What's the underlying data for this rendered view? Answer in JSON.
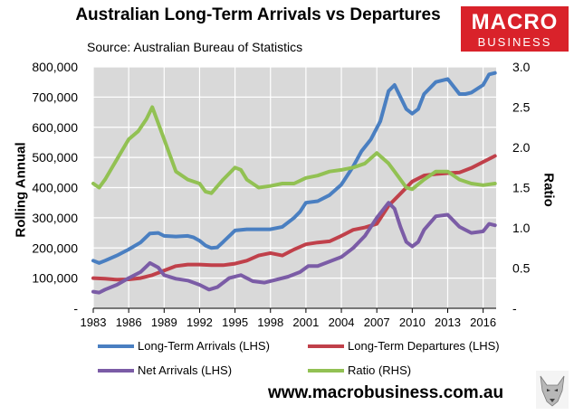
{
  "title": "Australian Long-Term Arrivals vs Departures",
  "subtitle": "Source: Australian Bureau of Statistics",
  "logo": {
    "line1": "MACRO",
    "line2": "BUSINESS",
    "color": "#d9222a"
  },
  "footer": "www.macrobusiness.com.au",
  "chart_data": {
    "type": "line",
    "title": "Australian Long-Term Arrivals vs Departures",
    "ylabel_left": "Rolling Annual",
    "ylabel_right": "Ratio",
    "xlim": [
      1983,
      2017.1
    ],
    "ylim_left": [
      0,
      800000
    ],
    "ylim_right": [
      0,
      3.0
    ],
    "x_ticks": [
      "1983",
      "1986",
      "1989",
      "1992",
      "1995",
      "1998",
      "2001",
      "2004",
      "2007",
      "2010",
      "2013",
      "2016"
    ],
    "y_ticks_left": [
      "-",
      "100,000",
      "200,000",
      "300,000",
      "400,000",
      "500,000",
      "600,000",
      "700,000",
      "800,000"
    ],
    "y_ticks_right": [
      "-",
      "0.5",
      "1.0",
      "1.5",
      "2.0",
      "2.5",
      "3.0"
    ],
    "grid": true,
    "legend_position": "bottom",
    "series": [
      {
        "name": "Long-Term Arrivals (LHS)",
        "axis": "left",
        "color": "#4a7fc1",
        "x": [
          1983.0,
          1983.5,
          1984,
          1985,
          1986,
          1987,
          1987.8,
          1988.5,
          1989,
          1990,
          1991,
          1991.5,
          1992,
          1992.5,
          1993,
          1993.5,
          1994,
          1995,
          1996,
          1997,
          1998,
          1999,
          2000,
          2000.5,
          2001,
          2002,
          2003,
          2004,
          2005,
          2005.7,
          2006.5,
          2007.3,
          2008,
          2008.5,
          2009,
          2009.5,
          2010,
          2010.5,
          2011,
          2011.5,
          2012,
          2013,
          2014,
          2014.5,
          2015,
          2016,
          2016.5,
          2017
        ],
        "y": [
          158000,
          150000,
          158000,
          175000,
          195000,
          218000,
          248000,
          250000,
          240000,
          238000,
          240000,
          235000,
          224000,
          208000,
          200000,
          202000,
          220000,
          258000,
          262000,
          262000,
          262000,
          270000,
          300000,
          320000,
          350000,
          355000,
          375000,
          410000,
          470000,
          520000,
          560000,
          620000,
          720000,
          740000,
          700000,
          660000,
          645000,
          660000,
          710000,
          730000,
          750000,
          760000,
          710000,
          710000,
          715000,
          740000,
          775000,
          780000
        ]
      },
      {
        "name": "Long-Term Departures (LHS)",
        "axis": "left",
        "color": "#c0404a",
        "x": [
          1983,
          1984,
          1985,
          1986,
          1987,
          1988,
          1989,
          1990,
          1991,
          1992,
          1993,
          1994,
          1995,
          1996,
          1997,
          1998,
          1999,
          2000,
          2001,
          2002,
          2003,
          2004,
          2005,
          2006,
          2007,
          2008,
          2009,
          2010,
          2011,
          2012,
          2013,
          2014,
          2015,
          2016,
          2017
        ],
        "y": [
          100000,
          98000,
          95000,
          96000,
          100000,
          110000,
          125000,
          140000,
          145000,
          145000,
          143000,
          143000,
          148000,
          158000,
          175000,
          183000,
          175000,
          195000,
          212000,
          218000,
          222000,
          240000,
          260000,
          268000,
          280000,
          340000,
          380000,
          420000,
          440000,
          445000,
          448000,
          450000,
          465000,
          485000,
          505000
        ]
      },
      {
        "name": "Net Arrivals (LHS)",
        "axis": "left",
        "color": "#7b5ca6",
        "x": [
          1983,
          1983.5,
          1984,
          1985,
          1986,
          1987,
          1987.8,
          1988.5,
          1989,
          1990,
          1991,
          1992,
          1992.8,
          1993.5,
          1994.5,
          1995.5,
          1996.5,
          1997.5,
          1998.5,
          1999.5,
          2000.5,
          2001.2,
          2002,
          2003,
          2004,
          2005,
          2006,
          2007,
          2008,
          2008.5,
          2009,
          2009.5,
          2010,
          2010.5,
          2011,
          2012,
          2013,
          2013.5,
          2014,
          2015,
          2016,
          2016.5,
          2017
        ],
        "y": [
          55000,
          52000,
          62000,
          78000,
          100000,
          120000,
          150000,
          135000,
          110000,
          98000,
          92000,
          78000,
          62000,
          70000,
          100000,
          110000,
          90000,
          85000,
          95000,
          105000,
          120000,
          140000,
          140000,
          155000,
          170000,
          200000,
          240000,
          300000,
          350000,
          330000,
          270000,
          220000,
          205000,
          220000,
          260000,
          305000,
          310000,
          290000,
          270000,
          250000,
          255000,
          280000,
          275000
        ]
      },
      {
        "name": "Ratio (RHS)",
        "axis": "right",
        "color": "#92c153",
        "x": [
          1983,
          1983.5,
          1984,
          1985,
          1986,
          1986.8,
          1987.5,
          1988,
          1988.5,
          1989,
          1990,
          1991,
          1992,
          1992.5,
          1993,
          1994,
          1995,
          1995.5,
          1996,
          1997,
          1998,
          1999,
          2000,
          2001,
          2002,
          2003,
          2004,
          2005,
          2006,
          2007,
          2008,
          2008.5,
          2009,
          2009.5,
          2010,
          2011,
          2012,
          2013,
          2014,
          2015,
          2016,
          2017
        ],
        "y": [
          1.55,
          1.5,
          1.6,
          1.85,
          2.1,
          2.2,
          2.35,
          2.5,
          2.3,
          2.1,
          1.7,
          1.6,
          1.55,
          1.45,
          1.43,
          1.6,
          1.75,
          1.72,
          1.6,
          1.5,
          1.52,
          1.55,
          1.55,
          1.62,
          1.65,
          1.7,
          1.72,
          1.75,
          1.8,
          1.93,
          1.8,
          1.7,
          1.6,
          1.5,
          1.48,
          1.6,
          1.7,
          1.7,
          1.6,
          1.55,
          1.53,
          1.55
        ]
      }
    ]
  }
}
